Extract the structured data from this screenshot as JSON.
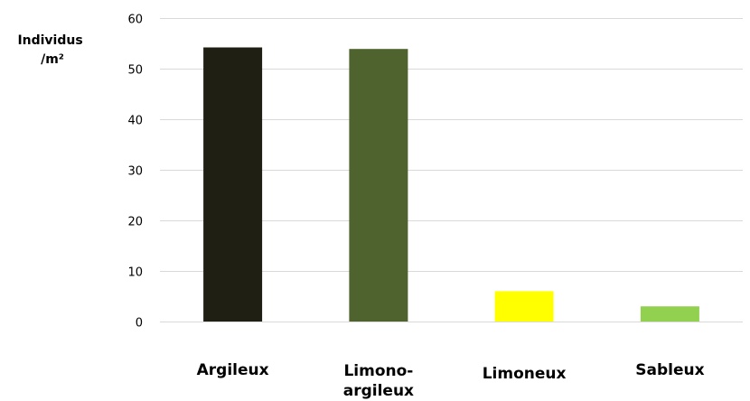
{
  "chart_data": {
    "type": "bar",
    "ylabel": [
      "Individus",
      "/m²"
    ],
    "categories": [
      [
        "Argileux"
      ],
      [
        "Limono-",
        "argileux"
      ],
      [
        "Limoneux"
      ],
      [
        "Sableux"
      ]
    ],
    "values": [
      54.2,
      53.9,
      6,
      3
    ],
    "colors": [
      "#201f13",
      "#4e632d",
      "#ffff00",
      "#92d050"
    ],
    "ylim": [
      0,
      60
    ],
    "yticks": [
      0,
      10,
      20,
      30,
      40,
      50,
      60
    ],
    "grid": true
  }
}
